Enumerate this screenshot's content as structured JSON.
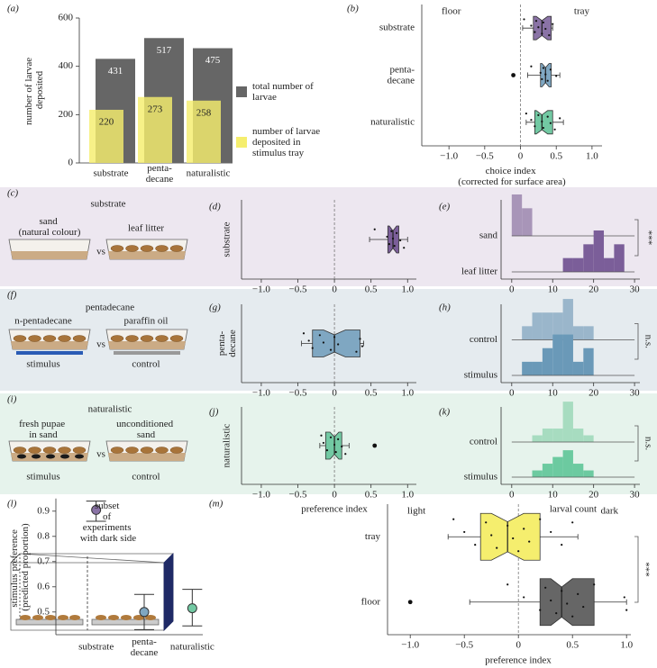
{
  "chart_data": [
    {
      "panel": "(a)",
      "type": "bar",
      "categories": [
        "substrate",
        "penta-decane",
        "naturalistic"
      ],
      "series": [
        {
          "name": "total number of larvae",
          "color": "#666666",
          "values": [
            431,
            517,
            475
          ]
        },
        {
          "name": "number of larvae deposited in stimulus tray",
          "color": "#f5ee6e",
          "values": [
            220,
            273,
            258
          ]
        }
      ],
      "ylim": [
        0,
        600
      ],
      "yticks": [
        0,
        200,
        400,
        600
      ],
      "y_label": "number of larvae deposited"
    },
    {
      "panel": "(b)",
      "type": "box",
      "categories": [
        "substrate",
        "penta-decane",
        "naturalistic"
      ],
      "boxes": [
        {
          "color": "#8a73a6",
          "q1": 0.18,
          "notch": [
            0.22,
            0.38
          ],
          "median": 0.3,
          "q3": 0.43,
          "whiskers": [
            0.03,
            0.45
          ],
          "points": [
            0.05,
            0.15,
            0.2,
            0.22,
            0.25,
            0.3,
            0.32,
            0.35,
            0.4,
            0.45
          ]
        },
        {
          "color": "#7fa7c2",
          "q1": 0.28,
          "notch": [
            0.3,
            0.4
          ],
          "median": 0.35,
          "q3": 0.43,
          "whiskers": [
            0.1,
            0.55
          ],
          "points": [
            0.15,
            0.28,
            0.3,
            0.32,
            0.35,
            0.38,
            0.42,
            0.5
          ],
          "outliers": [
            -0.1
          ]
        },
        {
          "color": "#72c9a3",
          "q1": 0.2,
          "notch": [
            0.22,
            0.38
          ],
          "median": 0.3,
          "q3": 0.45,
          "whiskers": [
            0.08,
            0.6
          ],
          "points": [
            0.08,
            0.15,
            0.2,
            0.25,
            0.3,
            0.32,
            0.38,
            0.42,
            0.48,
            0.55
          ]
        }
      ],
      "xlim": [
        -1.38,
        1.14
      ],
      "xticks": [
        {
          "value": -1,
          "label": "−1.0"
        },
        {
          "value": -0.5,
          "label": "−0.5"
        },
        0,
        0.5,
        {
          "value": 1,
          "label": "1.0"
        }
      ],
      "ref_line": 0,
      "left_label": "floor",
      "right_label": "tray",
      "x_label": "choice index (corrected for surface area)"
    },
    {
      "panel": "(d)",
      "type": "box",
      "categories": [
        "substrate"
      ],
      "boxes": [
        {
          "color": "#7b5e99",
          "q1": 0.73,
          "notch": [
            0.75,
            0.85
          ],
          "median": 0.8,
          "q3": 0.88,
          "whiskers": [
            0.48,
            1.0
          ],
          "points": [
            0.55,
            0.72,
            0.75,
            0.78,
            0.8,
            0.82,
            0.85,
            0.9,
            0.95
          ]
        }
      ],
      "xlim": [
        -1.27,
        1.12
      ],
      "xticks": [
        {
          "value": -1,
          "label": "−1.0"
        },
        {
          "value": -0.5,
          "label": "−0.5"
        },
        0,
        0.5,
        {
          "value": 1,
          "label": "1.0"
        }
      ],
      "ref_line": 0
    },
    {
      "panel": "(e)",
      "type": "histogram",
      "bins": [
        0,
        2.5,
        5,
        7.5,
        10,
        12.5,
        15,
        17.5,
        20,
        22.5,
        25,
        27.5,
        30
      ],
      "series": [
        {
          "name": "sand",
          "color": "#a895b8",
          "values": [
            3,
            2,
            0,
            0,
            0,
            0,
            0,
            0,
            0,
            0,
            0,
            0
          ]
        },
        {
          "name": "leaf litter",
          "color": "#7b5e99",
          "values": [
            0,
            0,
            0,
            0,
            0,
            1,
            1,
            2,
            3,
            1,
            2,
            0
          ]
        }
      ],
      "xlim": [
        -2.6,
        31.3
      ],
      "xticks": [
        0,
        10,
        20,
        30
      ],
      "annotation": "***"
    },
    {
      "panel": "(g)",
      "type": "box",
      "categories": [
        "penta-decane"
      ],
      "boxes": [
        {
          "color": "#7fa7c2",
          "q1": -0.3,
          "notch": [
            -0.15,
            0.15
          ],
          "median": 0,
          "q3": 0.35,
          "whiskers": [
            -0.45,
            0.4
          ],
          "points": [
            -0.42,
            -0.35,
            -0.3,
            -0.2,
            -0.15,
            -0.05,
            0.0,
            0.05,
            0.3,
            0.35,
            0.38
          ]
        }
      ],
      "xlim": [
        -1.27,
        1.12
      ],
      "xticks": [
        {
          "value": -1,
          "label": "−1.0"
        },
        {
          "value": -0.5,
          "label": "−0.5"
        },
        0,
        0.5,
        {
          "value": 1,
          "label": "1.0"
        }
      ],
      "ref_line": 0
    },
    {
      "panel": "(h)",
      "type": "histogram",
      "bins": [
        0,
        2.5,
        5,
        7.5,
        10,
        12.5,
        15,
        17.5,
        20,
        22.5,
        25,
        27.5,
        30
      ],
      "series": [
        {
          "name": "control",
          "color": "#9ab6cb",
          "values": [
            0,
            1,
            2,
            2,
            2,
            3,
            1,
            1,
            0,
            0,
            0,
            0
          ]
        },
        {
          "name": "stimulus",
          "color": "#6a99b8",
          "values": [
            0,
            1,
            1,
            2,
            3,
            3,
            1,
            2,
            0,
            0,
            0,
            0
          ]
        }
      ],
      "xlim": [
        -2.6,
        31.3
      ],
      "xticks": [
        0,
        10,
        20,
        30
      ],
      "annotation": "n.s."
    },
    {
      "panel": "(j)",
      "type": "box",
      "categories": [
        "naturalistic"
      ],
      "boxes": [
        {
          "color": "#72c9a3",
          "q1": -0.12,
          "notch": [
            -0.06,
            0.06
          ],
          "median": 0,
          "q3": 0.1,
          "whiskers": [
            -0.2,
            0.2
          ],
          "points": [
            -0.18,
            -0.15,
            -0.1,
            -0.05,
            0,
            0.02,
            0.05,
            0.1,
            0.15
          ],
          "outliers": [
            0.55
          ]
        }
      ],
      "xlim": [
        -1.27,
        1.12
      ],
      "xticks": [
        {
          "value": -1,
          "label": "−1.0"
        },
        {
          "value": -0.5,
          "label": "−0.5"
        },
        0,
        0.5,
        {
          "value": 1,
          "label": "1.0"
        }
      ],
      "ref_line": 0,
      "x_label": "preference index"
    },
    {
      "panel": "(k)",
      "type": "histogram",
      "bins": [
        0,
        2.5,
        5,
        7.5,
        10,
        12.5,
        15,
        17.5,
        20,
        22.5,
        25,
        27.5,
        30
      ],
      "series": [
        {
          "name": "control",
          "color": "#a7dcc0",
          "values": [
            0,
            0,
            1,
            2,
            2,
            6,
            2,
            1,
            0,
            0,
            0,
            0
          ]
        },
        {
          "name": "stimulus",
          "color": "#6ccaa0",
          "values": [
            0,
            0,
            1,
            2,
            3,
            4,
            2,
            1,
            0,
            0,
            0,
            0
          ]
        }
      ],
      "xlim": [
        -2.6,
        31.3
      ],
      "xticks": [
        0,
        10,
        20,
        30
      ],
      "annotation": "n.s.",
      "x_label": "larval count"
    },
    {
      "panel": "(l)",
      "type": "errorbar",
      "categories": [
        "substrate",
        "penta-decane",
        "naturalistic"
      ],
      "values": [
        0.905,
        0.5,
        0.515
      ],
      "ci": [
        [
          0.86,
          0.94
        ],
        [
          0.43,
          0.57
        ],
        [
          0.445,
          0.59
        ]
      ],
      "colors": [
        "#8a73a6",
        "#7fa7c2",
        "#72c9a3"
      ],
      "ylim": [
        0.41,
        0.95
      ],
      "yticks": [
        0.5,
        0.6,
        0.7,
        0.8,
        0.9
      ],
      "y_label": "stimulus preference (predicted proportion)"
    },
    {
      "panel": "(m)",
      "type": "box",
      "categories": [
        "tray",
        "floor"
      ],
      "boxes": [
        {
          "color": "#f5ee6e",
          "q1": -0.35,
          "notch": [
            -0.25,
            0.05
          ],
          "median": -0.1,
          "q3": 0.2,
          "whiskers": [
            -0.65,
            0.55
          ],
          "points": [
            -0.6,
            -0.5,
            -0.4,
            -0.3,
            -0.25,
            -0.2,
            -0.1,
            -0.05,
            0,
            0.05,
            0.1,
            0.2,
            0.3,
            0.4,
            0.5
          ]
        },
        {
          "color": "#666666",
          "q1": 0.2,
          "notch": [
            0.3,
            0.5
          ],
          "median": 0.4,
          "q3": 0.7,
          "whiskers": [
            -0.45,
            1.0
          ],
          "points": [
            -0.1,
            0.05,
            0.2,
            0.25,
            0.3,
            0.35,
            0.4,
            0.45,
            0.5,
            0.55,
            0.6,
            0.7,
            0.98,
            1.0
          ],
          "outliers": [
            -1.0
          ]
        }
      ],
      "xlim": [
        -1.21,
        1.04
      ],
      "xticks": [
        {
          "value": -1,
          "label": "−1.0"
        },
        {
          "value": -0.5,
          "label": "−0.5"
        },
        0,
        0.5,
        {
          "value": 1,
          "label": "1.0"
        }
      ],
      "ref_line": 0,
      "left_label": "light",
      "right_label": "dark",
      "x_label": "preference index",
      "annotation": "***"
    }
  ],
  "diagrams": [
    {
      "panel": "(c)",
      "title": "substrate",
      "left": "sand (natural colour)",
      "right": "leaf litter",
      "vs": "vs"
    },
    {
      "panel": "(f)",
      "title": "pentadecane",
      "left": "n-pentadecane",
      "right": "paraffin oil",
      "vs": "vs",
      "left_role": "stimulus",
      "right_role": "control"
    },
    {
      "panel": "(i)",
      "title": "naturalistic",
      "left": "fresh pupae in sand",
      "right": "unconditioned sand",
      "vs": "vs",
      "left_role": "stimulus",
      "right_role": "control"
    },
    {
      "caption": "subset of experiments with dark side"
    }
  ]
}
